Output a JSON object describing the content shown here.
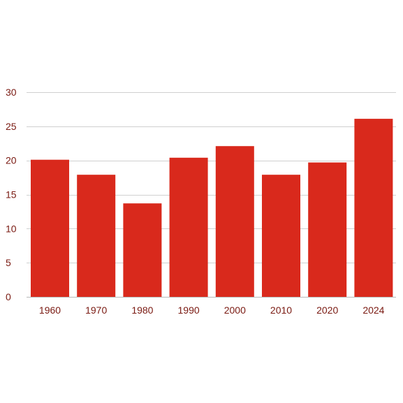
{
  "chart_data": {
    "type": "bar",
    "categories": [
      "1960",
      "1970",
      "1980",
      "1990",
      "2000",
      "2010",
      "2020",
      "2024"
    ],
    "values": [
      20.1,
      17.9,
      13.7,
      20.4,
      22.1,
      17.9,
      19.7,
      26.1
    ],
    "title": "",
    "xlabel": "",
    "ylabel": "",
    "ylim": [
      0,
      30
    ],
    "yticks": [
      0,
      5,
      10,
      15,
      20,
      25,
      30
    ],
    "ytick_labels": [
      "0",
      "5",
      "10",
      "15",
      "20",
      "25",
      "30"
    ],
    "grid": true,
    "legend": "none"
  },
  "colors": {
    "bar": "#d9291c",
    "tick_text": "#7a1a12",
    "gridline": "#d0d0d0"
  }
}
